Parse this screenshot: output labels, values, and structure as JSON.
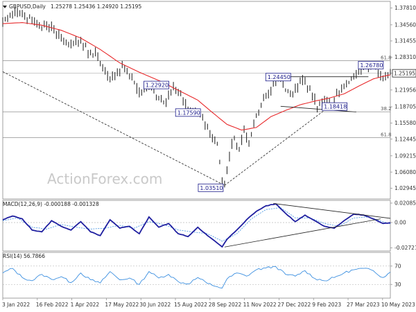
{
  "chart_data": {
    "type": "line",
    "title": "GBPUSD,Daily",
    "ohlc_text": "1.25278 1.25436 1.24920 1.25195",
    "watermark": "ActionForex.com",
    "colors": {
      "price": "#2e2e2e",
      "ma": "#e8292b",
      "macd": "#1f1fa0",
      "signal": "#3b8fe0",
      "rsi": "#3b8fe0",
      "box": "#1a1a8a",
      "level": "#777777"
    },
    "x_ticks": [
      "3 Jan 2022",
      "16 Feb 2022",
      "1 Apr 2022",
      "17 May 2022",
      "30 Jun 2022",
      "15 Aug 2022",
      "28 Sep 2022",
      "11 Nov 2022",
      "27 Dec 2022",
      "9 Feb 2023",
      "27 Mar 2023",
      "10 May 2023"
    ],
    "price_panel": {
      "ylim": [
        1.0087,
        1.391
      ],
      "y_ticks": [
        1.3781,
        1.3456,
        1.31455,
        1.2831,
        1.25195,
        1.21956,
        1.18705,
        1.1558,
        1.12445,
        1.09215,
        1.0608,
        1.02945
      ],
      "last_price": 1.25195,
      "price_anchors": [
        [
          0,
          1.352
        ],
        [
          2,
          1.36
        ],
        [
          5,
          1.372
        ],
        [
          8,
          1.368
        ],
        [
          12,
          1.355
        ],
        [
          16,
          1.34
        ],
        [
          20,
          1.343
        ],
        [
          24,
          1.32
        ],
        [
          27,
          1.308
        ],
        [
          30,
          1.315
        ],
        [
          33,
          1.305
        ],
        [
          36,
          1.29
        ],
        [
          39,
          1.284
        ],
        [
          41,
          1.262
        ],
        [
          44,
          1.238
        ],
        [
          47,
          1.255
        ],
        [
          50,
          1.262
        ],
        [
          53,
          1.243
        ],
        [
          56,
          1.215
        ],
        [
          59,
          1.226
        ],
        [
          61,
          1.229
        ],
        [
          64,
          1.203
        ],
        [
          67,
          1.196
        ],
        [
          70,
          1.225
        ],
        [
          73,
          1.212
        ],
        [
          76,
          1.178
        ],
        [
          79,
          1.182
        ],
        [
          82,
          1.165
        ],
        [
          84,
          1.148
        ],
        [
          86,
          1.126
        ],
        [
          88,
          1.115
        ],
        [
          90,
          1.04
        ],
        [
          91,
          1.0351
        ],
        [
          93,
          1.09
        ],
        [
          95,
          1.128
        ],
        [
          97,
          1.105
        ],
        [
          99,
          1.142
        ],
        [
          101,
          1.115
        ],
        [
          103,
          1.152
        ],
        [
          105,
          1.178
        ],
        [
          107,
          1.205
        ],
        [
          109,
          1.212
        ],
        [
          111,
          1.232
        ],
        [
          113,
          1.2445
        ],
        [
          115,
          1.23
        ],
        [
          117,
          1.218
        ],
        [
          119,
          1.212
        ],
        [
          121,
          1.225
        ],
        [
          123,
          1.238
        ],
        [
          125,
          1.222
        ],
        [
          127,
          1.21
        ],
        [
          129,
          1.185
        ],
        [
          131,
          1.195
        ],
        [
          133,
          1.2
        ],
        [
          135,
          1.189
        ],
        [
          137,
          1.214
        ],
        [
          139,
          1.22
        ],
        [
          141,
          1.232
        ],
        [
          143,
          1.243
        ],
        [
          145,
          1.252
        ],
        [
          147,
          1.258
        ],
        [
          149,
          1.265
        ],
        [
          151,
          1.2678
        ],
        [
          153,
          1.262
        ],
        [
          155,
          1.248
        ],
        [
          157,
          1.244
        ],
        [
          159,
          1.25195
        ]
      ],
      "ma_anchors": [
        [
          0,
          1.348
        ],
        [
          8,
          1.35
        ],
        [
          16,
          1.345
        ],
        [
          24,
          1.335
        ],
        [
          32,
          1.32
        ],
        [
          40,
          1.298
        ],
        [
          48,
          1.272
        ],
        [
          56,
          1.254
        ],
        [
          64,
          1.238
        ],
        [
          72,
          1.219
        ],
        [
          80,
          1.2
        ],
        [
          86,
          1.176
        ],
        [
          92,
          1.153
        ],
        [
          98,
          1.142
        ],
        [
          104,
          1.147
        ],
        [
          110,
          1.168
        ],
        [
          116,
          1.18
        ],
        [
          122,
          1.191
        ],
        [
          128,
          1.198
        ],
        [
          134,
          1.204
        ],
        [
          140,
          1.212
        ],
        [
          146,
          1.227
        ],
        [
          152,
          1.241
        ],
        [
          156,
          1.246
        ],
        [
          159,
          1.249
        ]
      ],
      "fib_levels": [
        {
          "label": "61.8",
          "price": 1.276
        },
        {
          "label": "38.2",
          "price": 1.1775
        },
        {
          "label": "61.8",
          "price": 1.1275
        }
      ],
      "price_boxes": [
        {
          "label": "1.22920",
          "x": 63,
          "price": 1.2292
        },
        {
          "label": "1.17590",
          "x": 76,
          "price": 1.1759
        },
        {
          "label": "1.24450",
          "x": 113,
          "price": 1.2445
        },
        {
          "label": "1.18418",
          "x": 133,
          "price": 1.1842
        },
        {
          "label": "1.26780",
          "x": 151,
          "price": 1.2678
        },
        {
          "label": "1.03510",
          "x": 91,
          "price": 1.0351
        }
      ],
      "trend_lines": [
        [
          [
            0,
            1.255
          ],
          [
            91,
            1.0351
          ]
        ],
        [
          [
            91,
            1.0351
          ],
          [
            133,
            1.184
          ]
        ],
        [
          [
            113,
            1.2452
          ],
          [
            150,
            1.2452
          ]
        ],
        [
          [
            114,
            1.188
          ],
          [
            145,
            1.177
          ]
        ]
      ]
    },
    "macd_panel": {
      "label": "MACD(12,26,9) -0.000188 -0.001328",
      "ylim": [
        -0.0305,
        0.0238
      ],
      "y_ticks": [
        0.020858,
        0.0,
        -0.027213
      ],
      "macd_anchors": [
        [
          0,
          0.003
        ],
        [
          4,
          0.007
        ],
        [
          8,
          0.004
        ],
        [
          12,
          -0.008
        ],
        [
          16,
          -0.01
        ],
        [
          20,
          0.002
        ],
        [
          24,
          -0.004
        ],
        [
          28,
          -0.008
        ],
        [
          32,
          0.001
        ],
        [
          36,
          -0.01
        ],
        [
          40,
          -0.014
        ],
        [
          44,
          0.003
        ],
        [
          48,
          -0.006
        ],
        [
          52,
          -0.004
        ],
        [
          56,
          -0.012
        ],
        [
          60,
          0.006
        ],
        [
          64,
          -0.005
        ],
        [
          68,
          -0.001
        ],
        [
          72,
          -0.012
        ],
        [
          76,
          -0.015
        ],
        [
          80,
          -0.005
        ],
        [
          84,
          -0.014
        ],
        [
          88,
          -0.022
        ],
        [
          90,
          -0.026
        ],
        [
          92,
          -0.018
        ],
        [
          96,
          -0.008
        ],
        [
          100,
          0.003
        ],
        [
          104,
          0.012
        ],
        [
          108,
          0.018
        ],
        [
          112,
          0.02
        ],
        [
          116,
          0.01
        ],
        [
          120,
          0.001
        ],
        [
          124,
          0.008
        ],
        [
          128,
          0.002
        ],
        [
          132,
          -0.004
        ],
        [
          136,
          -0.006
        ],
        [
          140,
          0.002
        ],
        [
          144,
          0.009
        ],
        [
          148,
          0.008
        ],
        [
          152,
          0.004
        ],
        [
          156,
          -0.001
        ],
        [
          159,
          -0.000188
        ]
      ],
      "signal_anchors": [
        [
          0,
          0.002
        ],
        [
          6,
          0.005
        ],
        [
          12,
          -0.005
        ],
        [
          18,
          -0.007
        ],
        [
          24,
          -0.002
        ],
        [
          30,
          -0.005
        ],
        [
          36,
          -0.007
        ],
        [
          42,
          -0.006
        ],
        [
          48,
          -0.003
        ],
        [
          54,
          -0.006
        ],
        [
          60,
          0.001
        ],
        [
          66,
          -0.002
        ],
        [
          72,
          -0.008
        ],
        [
          78,
          -0.01
        ],
        [
          84,
          -0.012
        ],
        [
          90,
          -0.02
        ],
        [
          96,
          -0.012
        ],
        [
          102,
          0.004
        ],
        [
          108,
          0.014
        ],
        [
          114,
          0.016
        ],
        [
          120,
          0.005
        ],
        [
          126,
          0.005
        ],
        [
          132,
          -0.001
        ],
        [
          138,
          -0.004
        ],
        [
          144,
          0.005
        ],
        [
          150,
          0.006
        ],
        [
          156,
          0.001
        ],
        [
          159,
          -0.001328
        ]
      ],
      "trend_lines": [
        [
          [
            91,
            -0.0262
          ],
          [
            155,
            0.004
          ]
        ],
        [
          [
            111,
            0.0205
          ],
          [
            159,
            0.0045
          ]
        ]
      ]
    },
    "rsi_panel": {
      "label": "RSI(14) 56.7866",
      "ylim": [
        0,
        100
      ],
      "y_ticks": [
        70,
        30
      ],
      "rsi_anchors": [
        [
          0,
          55
        ],
        [
          4,
          65
        ],
        [
          8,
          45
        ],
        [
          12,
          38
        ],
        [
          16,
          52
        ],
        [
          20,
          41
        ],
        [
          24,
          47
        ],
        [
          28,
          34
        ],
        [
          32,
          55
        ],
        [
          36,
          40
        ],
        [
          40,
          33
        ],
        [
          44,
          58
        ],
        [
          48,
          40
        ],
        [
          52,
          44
        ],
        [
          56,
          30
        ],
        [
          60,
          58
        ],
        [
          64,
          44
        ],
        [
          68,
          52
        ],
        [
          72,
          36
        ],
        [
          76,
          31
        ],
        [
          80,
          45
        ],
        [
          84,
          32
        ],
        [
          88,
          25
        ],
        [
          90,
          22
        ],
        [
          92,
          42
        ],
        [
          96,
          55
        ],
        [
          100,
          48
        ],
        [
          104,
          62
        ],
        [
          108,
          66
        ],
        [
          112,
          69
        ],
        [
          116,
          52
        ],
        [
          120,
          48
        ],
        [
          124,
          60
        ],
        [
          128,
          43
        ],
        [
          132,
          38
        ],
        [
          136,
          45
        ],
        [
          140,
          55
        ],
        [
          144,
          62
        ],
        [
          148,
          65
        ],
        [
          152,
          60
        ],
        [
          156,
          45
        ],
        [
          159,
          56.7866
        ]
      ]
    }
  }
}
